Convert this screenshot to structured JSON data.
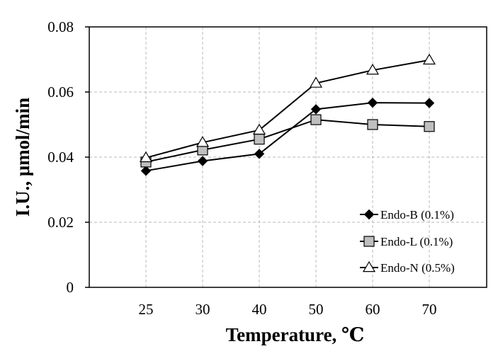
{
  "chart_data": {
    "type": "line",
    "title": "",
    "xlabel": "Temperature, ℃",
    "ylabel": "I.U., μmol/min",
    "categories": [
      "25",
      "30",
      "40",
      "50",
      "60",
      "70"
    ],
    "ylim": [
      0,
      0.08
    ],
    "yticks": [
      "0",
      "0.02",
      "0.04",
      "0.06",
      "0.08"
    ],
    "ytick_values": [
      0,
      0.02,
      0.04,
      0.06,
      0.08
    ],
    "grid": true,
    "legend_position": "bottom-right",
    "series": [
      {
        "name": "Endo-B (0.1%)",
        "marker": "diamond",
        "fill": "#000000",
        "values": [
          0.0358,
          0.0388,
          0.041,
          0.0547,
          0.0567,
          0.0566
        ]
      },
      {
        "name": "Endo-L (0.1%)",
        "marker": "square",
        "fill": "#bfbfbf",
        "values": [
          0.0385,
          0.0422,
          0.0455,
          0.0515,
          0.05,
          0.0494
        ]
      },
      {
        "name": "Endo-N (0.5%)",
        "marker": "triangle",
        "fill": "#ffffff",
        "values": [
          0.0398,
          0.0445,
          0.0483,
          0.0627,
          0.0667,
          0.0698
        ]
      }
    ]
  }
}
